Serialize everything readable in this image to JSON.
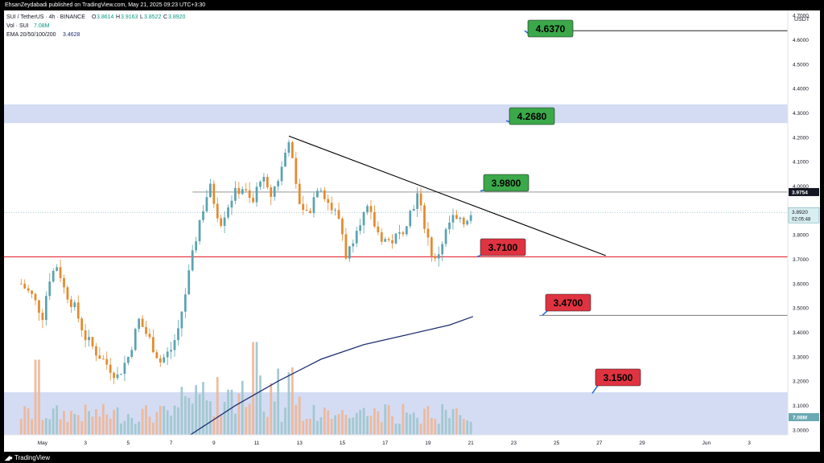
{
  "header": {
    "publisher": "EhsanZeydabadi published on TradingView.com, May 21, 2025 09:23 UTC+3:30"
  },
  "legend": {
    "symbol": "SUI / TetherUS · 4h · BINANCE",
    "open_label": "O",
    "open": "3.8614",
    "high_label": "H",
    "high": "3.9163",
    "low_label": "L",
    "low": "3.8522",
    "close_label": "C",
    "close": "3.8920",
    "vol_label": "Vol · SUI",
    "vol": "7.08M",
    "ema_label": "EMA 20/50/100/200",
    "ema": "3.4628"
  },
  "footer": {
    "brand": "TradingView",
    "logo_icon": "tradingview-logo-icon"
  },
  "chart_data": {
    "type": "candlestick",
    "currency": "USDT",
    "ylim": [
      2.98,
      4.72
    ],
    "y_ticks": [
      3.0,
      3.1,
      3.2,
      3.3,
      3.4,
      3.5,
      3.6,
      3.7,
      3.8,
      3.9,
      4.0,
      4.1,
      4.2,
      4.3,
      4.4,
      4.5,
      4.6,
      4.7
    ],
    "x_ticks": [
      {
        "day": 1,
        "label": "May"
      },
      {
        "day": 3,
        "label": "3"
      },
      {
        "day": 5,
        "label": "5"
      },
      {
        "day": 7,
        "label": "7"
      },
      {
        "day": 9,
        "label": "9"
      },
      {
        "day": 11,
        "label": "11"
      },
      {
        "day": 13,
        "label": "13"
      },
      {
        "day": 15,
        "label": "15"
      },
      {
        "day": 17,
        "label": "17"
      },
      {
        "day": 19,
        "label": "19"
      },
      {
        "day": 21,
        "label": "21"
      },
      {
        "day": 23,
        "label": "23"
      },
      {
        "day": 25,
        "label": "25"
      },
      {
        "day": 27,
        "label": "27"
      },
      {
        "day": 29,
        "label": "29"
      },
      {
        "day": 32,
        "label": "Jun"
      },
      {
        "day": 34,
        "label": "3"
      }
    ],
    "xlim_days": [
      -0.8,
      35.8
    ],
    "colors": {
      "up": "#5ba3b0",
      "down": "#e48a2e",
      "vol_up": "#9cc5cc",
      "vol_down": "#f0b592",
      "ema": "#1d2f6f",
      "zone": "#d4dcf4",
      "resistance": "#3ba84a",
      "support": "#e03341",
      "support_line": "#e83c46"
    },
    "price_labels": {
      "level_value": "3.9754",
      "last_price": "3.8920",
      "countdown": "02:05:48",
      "volume": "7.08M"
    },
    "zones": [
      {
        "from": 4.258,
        "to": 4.335
      },
      {
        "from": 2.98,
        "to": 3.155
      }
    ],
    "levels": [
      {
        "label": "4.6370",
        "price": 4.637,
        "kind": "resistance",
        "line_from_day": 24.5
      },
      {
        "label": "4.2680",
        "price": 4.268,
        "kind": "resistance",
        "line_from_day": null
      },
      {
        "label": "3.9800",
        "price": 3.98,
        "kind": "resistance",
        "line_from_day": null
      },
      {
        "label": "3.7100",
        "price": 3.71,
        "kind": "support",
        "line_from_day": -0.8
      },
      {
        "label": "3.4700",
        "price": 3.47,
        "kind": "support",
        "line_from_day": 24.2
      },
      {
        "label": "3.1500",
        "price": 3.15,
        "kind": "support",
        "line_from_day": null
      }
    ],
    "level_line_3975": 3.9754,
    "trendline": {
      "from": {
        "day": 12.5,
        "price": 4.205
      },
      "to": {
        "day": 27.3,
        "price": 3.715
      }
    },
    "ema_line": [
      {
        "day": 7.9,
        "price": 2.98
      },
      {
        "day": 10,
        "price": 3.1
      },
      {
        "day": 12,
        "price": 3.2
      },
      {
        "day": 14,
        "price": 3.29
      },
      {
        "day": 16,
        "price": 3.35
      },
      {
        "day": 18,
        "price": 3.39
      },
      {
        "day": 20,
        "price": 3.43
      },
      {
        "day": 21.1,
        "price": 3.465
      }
    ],
    "close_path": [
      {
        "day": 0,
        "price": 3.6
      },
      {
        "day": 0.5,
        "price": 3.55
      },
      {
        "day": 1,
        "price": 3.47
      },
      {
        "day": 1.3,
        "price": 3.62
      },
      {
        "day": 1.7,
        "price": 3.68
      },
      {
        "day": 2,
        "price": 3.58
      },
      {
        "day": 2.5,
        "price": 3.5
      },
      {
        "day": 3,
        "price": 3.38
      },
      {
        "day": 3.5,
        "price": 3.32
      },
      {
        "day": 4,
        "price": 3.27
      },
      {
        "day": 4.5,
        "price": 3.22
      },
      {
        "day": 5,
        "price": 3.3
      },
      {
        "day": 5.5,
        "price": 3.45
      },
      {
        "day": 6,
        "price": 3.37
      },
      {
        "day": 6.5,
        "price": 3.28
      },
      {
        "day": 7,
        "price": 3.33
      },
      {
        "day": 7.3,
        "price": 3.4
      },
      {
        "day": 7.8,
        "price": 3.62
      },
      {
        "day": 8.3,
        "price": 3.85
      },
      {
        "day": 8.8,
        "price": 4.0
      },
      {
        "day": 9.3,
        "price": 3.85
      },
      {
        "day": 9.8,
        "price": 3.95
      },
      {
        "day": 10.3,
        "price": 4.0
      },
      {
        "day": 10.8,
        "price": 3.92
      },
      {
        "day": 11.2,
        "price": 4.05
      },
      {
        "day": 11.6,
        "price": 3.95
      },
      {
        "day": 12.1,
        "price": 4.05
      },
      {
        "day": 12.5,
        "price": 4.2
      },
      {
        "day": 12.9,
        "price": 3.95
      },
      {
        "day": 13.4,
        "price": 3.88
      },
      {
        "day": 13.9,
        "price": 4.02
      },
      {
        "day": 14.4,
        "price": 3.92
      },
      {
        "day": 14.9,
        "price": 3.86
      },
      {
        "day": 15.2,
        "price": 3.7
      },
      {
        "day": 15.7,
        "price": 3.85
      },
      {
        "day": 16.2,
        "price": 3.9
      },
      {
        "day": 16.7,
        "price": 3.8
      },
      {
        "day": 17.2,
        "price": 3.77
      },
      {
        "day": 17.7,
        "price": 3.8
      },
      {
        "day": 18.1,
        "price": 3.88
      },
      {
        "day": 18.5,
        "price": 3.96
      },
      {
        "day": 18.9,
        "price": 3.82
      },
      {
        "day": 19.3,
        "price": 3.68
      },
      {
        "day": 19.7,
        "price": 3.78
      },
      {
        "day": 20.1,
        "price": 3.87
      },
      {
        "day": 20.6,
        "price": 3.84
      },
      {
        "day": 21.0,
        "price": 3.892
      }
    ]
  }
}
